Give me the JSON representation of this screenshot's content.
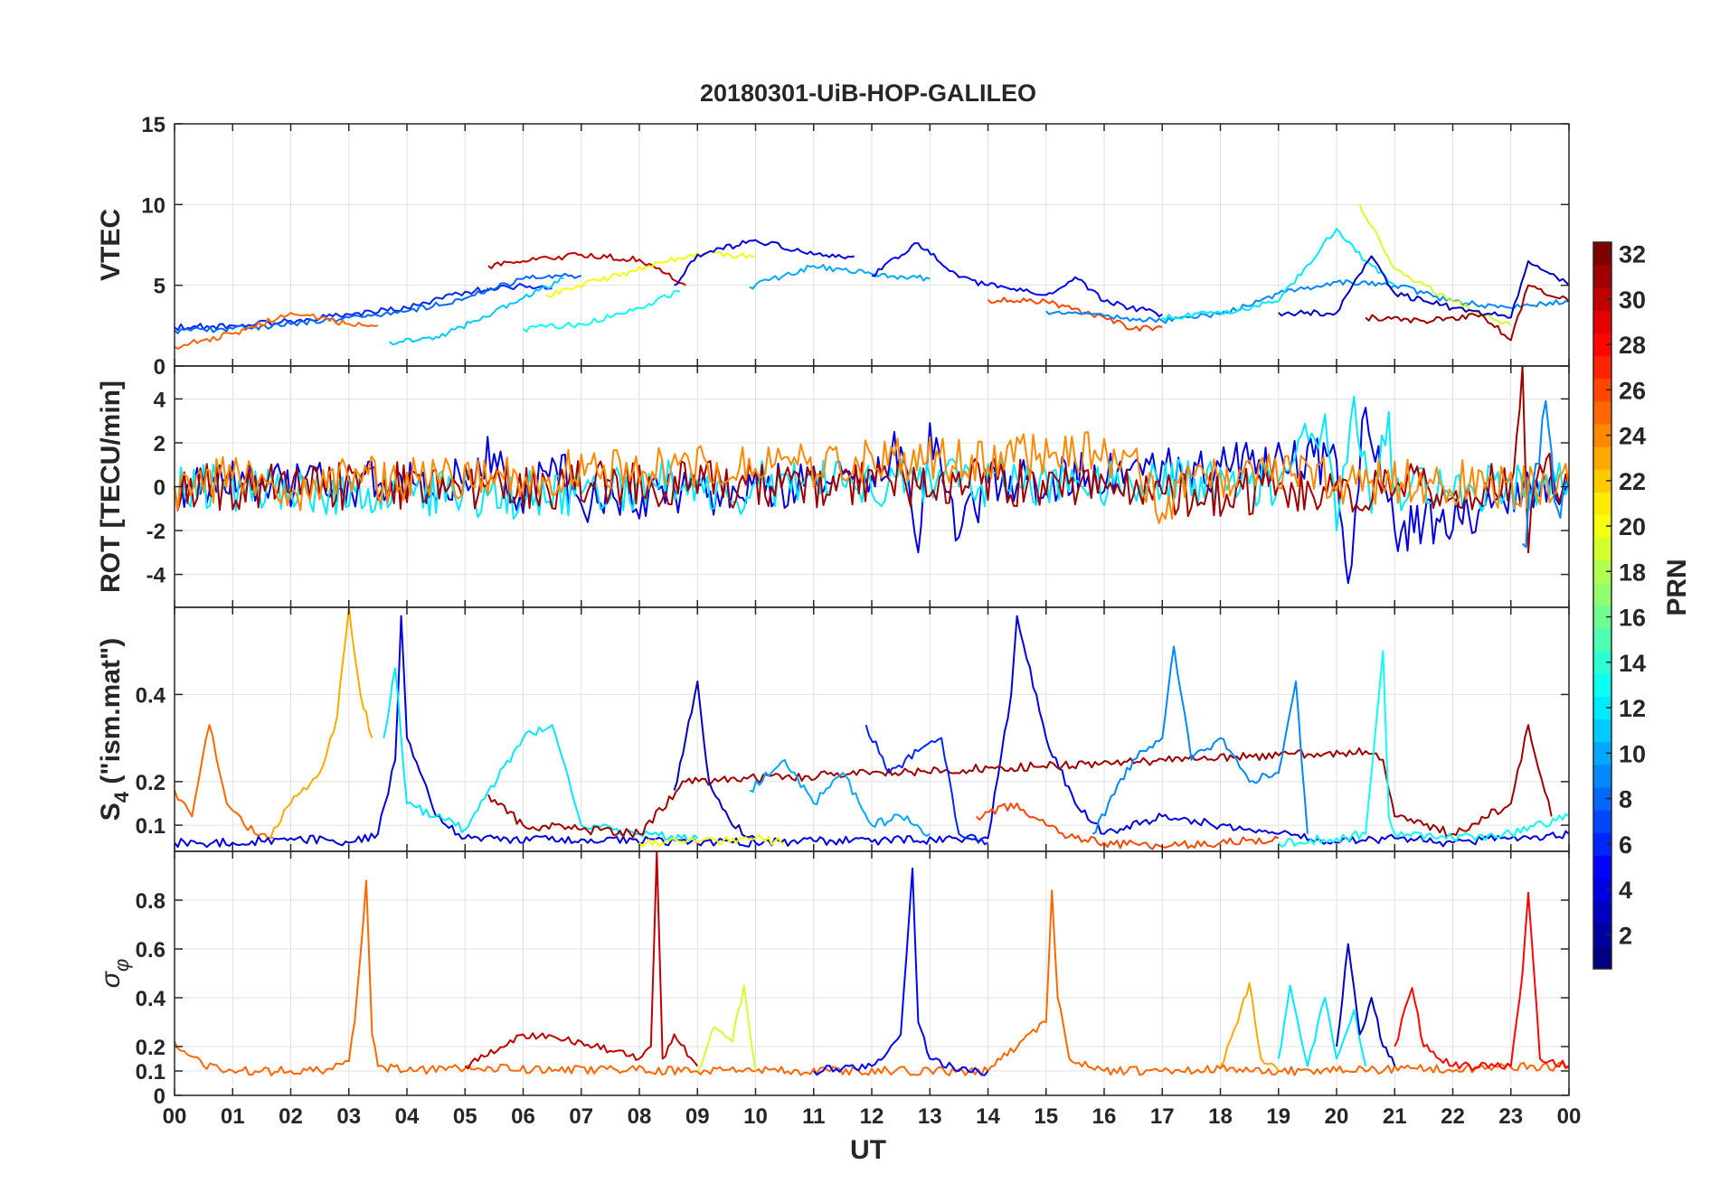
{
  "chart_data": {
    "type": "line",
    "title": "20180301-UiB-HOP-GALILEO",
    "xlabel": "UT",
    "x_range_hours": [
      0,
      24
    ],
    "x_tick_labels": [
      "00",
      "01",
      "02",
      "03",
      "04",
      "05",
      "06",
      "07",
      "08",
      "09",
      "10",
      "11",
      "12",
      "13",
      "14",
      "15",
      "16",
      "17",
      "18",
      "19",
      "20",
      "21",
      "22",
      "23",
      "00"
    ],
    "grid": true,
    "colorbar": {
      "label": "PRN",
      "range": [
        1,
        32
      ],
      "tick_labels": [
        "2",
        "4",
        "6",
        "8",
        "10",
        "12",
        "14",
        "16",
        "18",
        "20",
        "22",
        "24",
        "26",
        "28",
        "30",
        "32"
      ],
      "colormap": "jet"
    },
    "panels": [
      {
        "id": "vtec",
        "ylabel": "VTEC",
        "ylim": [
          0,
          15
        ],
        "y_ticks": [
          0,
          5,
          10,
          15
        ],
        "y_tick_labels": [
          "0",
          "5",
          "10",
          "15"
        ],
        "series": [
          {
            "prn": 6,
            "x": [
              0,
              1,
              2,
              3,
              4,
              5,
              6,
              6.5
            ],
            "y": [
              2.4,
              2.5,
              2.8,
              3.2,
              3.6,
              4.6,
              5.0,
              4.8
            ]
          },
          {
            "prn": 8,
            "x": [
              0,
              1,
              2,
              3,
              4,
              5,
              6,
              7
            ],
            "y": [
              2.2,
              2.3,
              2.6,
              3.0,
              3.4,
              4.2,
              5.4,
              5.6
            ]
          },
          {
            "prn": 25,
            "x": [
              0,
              0.5,
              1,
              2,
              3,
              3.5
            ],
            "y": [
              1.2,
              1.6,
              2.0,
              3.3,
              2.6,
              2.5
            ]
          },
          {
            "prn": 30,
            "x": [
              5.4,
              6,
              7,
              8,
              8.8
            ],
            "y": [
              6.2,
              6.5,
              6.9,
              6.6,
              5.0
            ]
          },
          {
            "prn": 11,
            "x": [
              3.7,
              4.5,
              5.2,
              6,
              6.7
            ],
            "y": [
              1.5,
              1.8,
              2.8,
              4.2,
              5.4
            ]
          },
          {
            "prn": 13,
            "x": [
              6,
              7,
              8,
              8.7
            ],
            "y": [
              2.3,
              2.6,
              3.6,
              4.6
            ]
          },
          {
            "prn": 20,
            "x": [
              6.4,
              7.5,
              8.5,
              9,
              10
            ],
            "y": [
              4.4,
              5.5,
              6.5,
              7.0,
              6.8
            ]
          },
          {
            "prn": 4,
            "x": [
              8.6,
              9,
              10,
              11,
              11.7
            ],
            "y": [
              5.0,
              6.9,
              7.8,
              6.9,
              6.8
            ]
          },
          {
            "prn": 10,
            "x": [
              9.9,
              11,
              12,
              13
            ],
            "y": [
              4.9,
              6.2,
              5.7,
              5.4
            ]
          },
          {
            "prn": 5,
            "x": [
              12,
              12.8,
              13.5,
              14,
              15,
              15.5,
              16,
              17
            ],
            "y": [
              5.6,
              7.6,
              5.5,
              5.0,
              4.4,
              5.5,
              4.0,
              3.2
            ]
          },
          {
            "prn": 26,
            "x": [
              14,
              15,
              16,
              16.5,
              17
            ],
            "y": [
              4.1,
              4.0,
              3.0,
              2.3,
              2.4
            ]
          },
          {
            "prn": 9,
            "x": [
              15,
              16,
              17,
              18,
              19,
              20,
              21,
              22,
              23,
              24
            ],
            "y": [
              3.4,
              3.1,
              2.8,
              3.2,
              4.5,
              5.2,
              5.0,
              4.0,
              3.6,
              4.0
            ]
          },
          {
            "prn": 12,
            "x": [
              17,
              18,
              19,
              20,
              20.5,
              21
            ],
            "y": [
              3.0,
              3.3,
              4.0,
              8.5,
              6.5,
              5.0
            ]
          },
          {
            "prn": 19,
            "x": [
              20.4,
              21,
              22,
              23
            ],
            "y": [
              10.0,
              6.0,
              4.0,
              2.5
            ]
          },
          {
            "prn": 3,
            "x": [
              19,
              20,
              20.6,
              21,
              22,
              23,
              23.3,
              24
            ],
            "y": [
              3.3,
              3.3,
              6.8,
              4.5,
              3.6,
              3.0,
              6.5,
              5.0
            ]
          },
          {
            "prn": 31,
            "x": [
              20.5,
              21.5,
              22.5,
              23,
              23.3,
              24
            ],
            "y": [
              3.0,
              2.8,
              3.2,
              1.6,
              5.0,
              4.0
            ]
          }
        ]
      },
      {
        "id": "rot",
        "ylabel": "ROT [TECU/min]",
        "ylim": [
          -5.5,
          5.5
        ],
        "y_ticks": [
          -4,
          -2,
          0,
          2,
          4
        ],
        "y_tick_labels": [
          "-4",
          "-2",
          "0",
          "2",
          "4"
        ],
        "series": [
          {
            "prn": 4,
            "x": [
              0,
              5,
              5.5,
              6,
              6.5,
              7,
              12,
              12.5,
              12.8,
              13,
              13.5,
              14,
              20,
              20.2,
              20.5,
              21,
              24
            ],
            "y": [
              0,
              0.3,
              1.5,
              -1.2,
              1.3,
              -0.8,
              0.5,
              1.8,
              -3.0,
              2.9,
              -2.3,
              0.2,
              1.2,
              -4.4,
              3.6,
              -2.0,
              0.1
            ]
          },
          {
            "prn": 12,
            "x": [
              0,
              6,
              9,
              9.8,
              10,
              19,
              19.8,
              20,
              20.3,
              20.6,
              20.9,
              21,
              24
            ],
            "y": [
              0,
              -0.4,
              0.3,
              -1.0,
              0.2,
              0.2,
              3.3,
              -2.0,
              4.1,
              -1.2,
              3.4,
              -0.3,
              0.1
            ]
          },
          {
            "prn": 31,
            "x": [
              0,
              16,
              17,
              23,
              23.2,
              23.3,
              23.5,
              24
            ],
            "y": [
              0,
              0.2,
              -0.3,
              0.1,
              5.5,
              -3.0,
              1.0,
              0
            ]
          },
          {
            "prn": 24,
            "x": [
              0,
              1,
              2,
              3,
              16.5,
              17,
              17.5,
              24
            ],
            "y": [
              0,
              0.4,
              -0.3,
              0.3,
              1.5,
              -1.2,
              0.5,
              0
            ]
          },
          {
            "prn": 9,
            "x": [
              23.2,
              23.6,
              23.8,
              24
            ],
            "y": [
              -2.6,
              3.9,
              -1.0,
              0
            ]
          }
        ]
      },
      {
        "id": "s4",
        "ylabel": "S4 (\"ism.mat\")",
        "ylabel_main": "S",
        "ylabel_sub": "4",
        "ylabel_tail": " (\"ism.mat\")",
        "ylim": [
          0.04,
          0.6
        ],
        "y_ticks": [
          0.1,
          0.2,
          0.4
        ],
        "y_tick_labels": [
          "0.1",
          "0.2",
          "0.4"
        ],
        "series": [
          {
            "prn": 25,
            "x": [
              0,
              0.3,
              0.6,
              0.9,
              1.2,
              1.5,
              1.7
            ],
            "y": [
              0.18,
              0.12,
              0.33,
              0.15,
              0.1,
              0.08,
              0.07
            ]
          },
          {
            "prn": 23,
            "x": [
              1.6,
              2,
              2.5,
              2.8,
              3.0,
              3.2,
              3.4
            ],
            "y": [
              0.07,
              0.15,
              0.22,
              0.35,
              0.6,
              0.4,
              0.3
            ]
          },
          {
            "prn": 4,
            "x": [
              0,
              1,
              2,
              3,
              3.5,
              3.8,
              3.9,
              4.0,
              4.5,
              5,
              10,
              14,
              14.4,
              14.5,
              15,
              15.5,
              16,
              17,
              18,
              19,
              20,
              21,
              22,
              23,
              24
            ],
            "y": [
              0.06,
              0.06,
              0.07,
              0.06,
              0.08,
              0.25,
              0.58,
              0.3,
              0.12,
              0.07,
              0.06,
              0.07,
              0.4,
              0.58,
              0.3,
              0.15,
              0.08,
              0.12,
              0.1,
              0.08,
              0.06,
              0.07,
              0.06,
              0.07,
              0.08
            ]
          },
          {
            "prn": 12,
            "x": [
              3.6,
              3.8,
              4.0,
              4.5,
              5,
              6,
              6.5,
              7,
              8,
              9
            ],
            "y": [
              0.3,
              0.46,
              0.15,
              0.12,
              0.09,
              0.3,
              0.33,
              0.1,
              0.08,
              0.07
            ]
          },
          {
            "prn": 31,
            "x": [
              5.4,
              6,
              7,
              8,
              8.8,
              20.5,
              20.8,
              21,
              21.5,
              22,
              23,
              23.3,
              23.7
            ],
            "y": [
              0.17,
              0.1,
              0.09,
              0.08,
              0.2,
              0.27,
              0.25,
              0.12,
              0.1,
              0.08,
              0.15,
              0.33,
              0.12
            ]
          },
          {
            "prn": 3,
            "x": [
              8.6,
              8.8,
              9,
              9.2,
              9.6,
              10
            ],
            "y": [
              0.18,
              0.3,
              0.43,
              0.2,
              0.1,
              0.07
            ]
          },
          {
            "prn": 10,
            "x": [
              9.9,
              10.5,
              11,
              11.5,
              12,
              12.5,
              13
            ],
            "y": [
              0.18,
              0.25,
              0.15,
              0.22,
              0.1,
              0.12,
              0.08
            ]
          },
          {
            "prn": 6,
            "x": [
              11.9,
              12.3,
              12.8,
              13.2,
              13.5,
              14
            ],
            "y": [
              0.33,
              0.22,
              0.27,
              0.3,
              0.08,
              0.06
            ]
          },
          {
            "prn": 9,
            "x": [
              15.8,
              16.5,
              17,
              17.2,
              17.5,
              18,
              18.5,
              19,
              19.3,
              19.5
            ],
            "y": [
              0.08,
              0.25,
              0.3,
              0.51,
              0.25,
              0.3,
              0.2,
              0.22,
              0.43,
              0.08
            ]
          },
          {
            "prn": 26,
            "x": [
              13.8,
              14.5,
              15,
              15.5,
              16,
              17,
              18,
              19
            ],
            "y": [
              0.12,
              0.15,
              0.1,
              0.07,
              0.06,
              0.05,
              0.06,
              0.07
            ]
          },
          {
            "prn": 13,
            "x": [
              19,
              20,
              20.5,
              20.8,
              20.9,
              21,
              22,
              23,
              24
            ],
            "y": [
              0.06,
              0.07,
              0.08,
              0.5,
              0.12,
              0.08,
              0.07,
              0.08,
              0.12
            ]
          },
          {
            "prn": 20,
            "x": [
              8,
              9,
              10,
              10.5
            ],
            "y": [
              0.06,
              0.06,
              0.07,
              0.06
            ]
          }
        ]
      },
      {
        "id": "sigma_phi",
        "ylabel": "σ φ",
        "ylabel_main": "σ",
        "ylabel_sub": "φ",
        "ylim": [
          0,
          1
        ],
        "y_ticks": [
          0,
          0.1,
          0.2,
          0.4,
          0.6,
          0.8
        ],
        "y_tick_labels": [
          "0",
          "0.1",
          "0.2",
          "0.4",
          "0.6",
          "0.8"
        ],
        "series": [
          {
            "prn": 25,
            "x": [
              0,
              0.5,
              1,
              1.5,
              2,
              2.5,
              3,
              3.1,
              3.3,
              3.4,
              3.5,
              4,
              5,
              10,
              14,
              15,
              15.1,
              15.2,
              15.4,
              16,
              17,
              18,
              19,
              20,
              24
            ],
            "y": [
              0.22,
              0.12,
              0.1,
              0.1,
              0.1,
              0.1,
              0.14,
              0.3,
              0.88,
              0.25,
              0.12,
              0.1,
              0.11,
              0.1,
              0.1,
              0.3,
              0.84,
              0.4,
              0.15,
              0.1,
              0.1,
              0.11,
              0.1,
              0.1,
              0.12
            ]
          },
          {
            "prn": 30,
            "x": [
              5,
              6,
              7,
              8,
              8.2,
              8.3,
              8.4,
              8.6,
              9
            ],
            "y": [
              0.12,
              0.25,
              0.22,
              0.15,
              0.2,
              1.0,
              0.15,
              0.25,
              0.12
            ]
          },
          {
            "prn": 19,
            "x": [
              9,
              9.3,
              9.6,
              9.8,
              10
            ],
            "y": [
              0.1,
              0.28,
              0.22,
              0.45,
              0.1
            ]
          },
          {
            "prn": 5,
            "x": [
              11,
              12,
              12.5,
              12.7,
              12.8,
              13,
              13.5,
              14
            ],
            "y": [
              0.1,
              0.12,
              0.25,
              0.93,
              0.3,
              0.15,
              0.1,
              0.1
            ]
          },
          {
            "prn": 23,
            "x": [
              18,
              18.3,
              18.5,
              18.7,
              19
            ],
            "y": [
              0.12,
              0.3,
              0.46,
              0.15,
              0.1
            ]
          },
          {
            "prn": 12,
            "x": [
              19,
              19.2,
              19.5,
              19.8,
              20,
              20.3,
              20.5
            ],
            "y": [
              0.15,
              0.45,
              0.12,
              0.4,
              0.15,
              0.35,
              0.12
            ]
          },
          {
            "prn": 3,
            "x": [
              20,
              20.2,
              20.4,
              20.6,
              20.8,
              21
            ],
            "y": [
              0.2,
              0.62,
              0.25,
              0.4,
              0.2,
              0.12
            ]
          },
          {
            "prn": 28,
            "x": [
              21,
              21.3,
              21.5,
              22,
              23,
              23.2,
              23.3,
              23.5,
              24
            ],
            "y": [
              0.2,
              0.44,
              0.2,
              0.12,
              0.12,
              0.5,
              0.83,
              0.15,
              0.12
            ]
          }
        ]
      }
    ]
  }
}
